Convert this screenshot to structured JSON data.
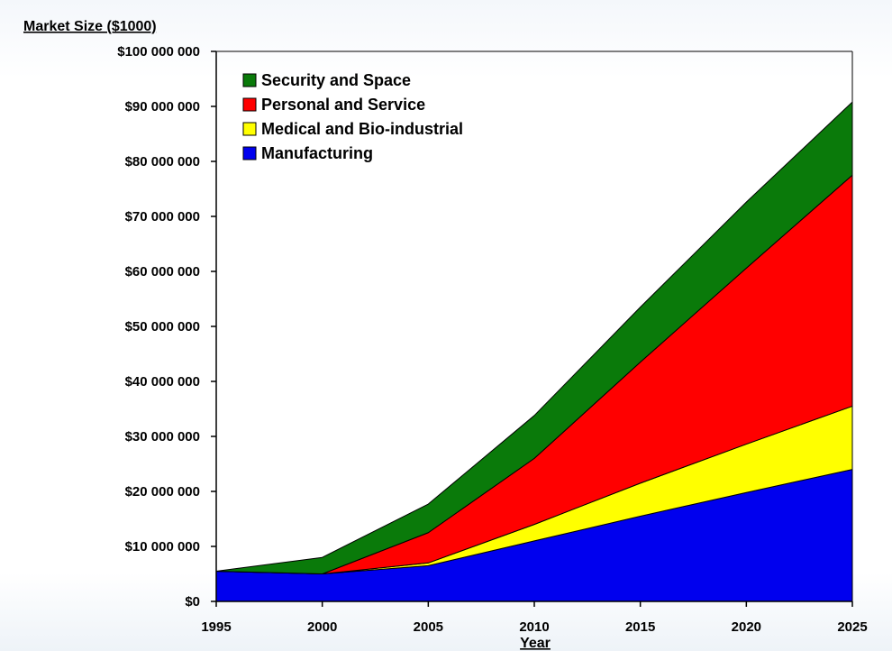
{
  "chart_data": {
    "type": "area",
    "stacked": true,
    "ylabel": "Market Size ($1000)",
    "xlabel": "Year",
    "x": [
      1995,
      2000,
      2005,
      2010,
      2015,
      2020,
      2025
    ],
    "xlim": [
      1995,
      2025
    ],
    "ylim": [
      0,
      100000000
    ],
    "x_ticks": [
      "1995",
      "2000",
      "2005",
      "2010",
      "2015",
      "2020",
      "2025"
    ],
    "y_ticks": [
      0,
      10000000,
      20000000,
      30000000,
      40000000,
      50000000,
      60000000,
      70000000,
      80000000,
      90000000,
      100000000
    ],
    "y_tick_labels": [
      "$0",
      "$10 000 000",
      "$20 000 000",
      "$30 000 000",
      "$40 000 000",
      "$50 000 000",
      "$60 000 000",
      "$70 000 000",
      "$80 000 000",
      "$90 000 000",
      "$100 000 000"
    ],
    "grid": false,
    "legend_placement": "top-left",
    "series": [
      {
        "name": "Manufacturing",
        "color": "#0000ee",
        "values": [
          5500000,
          5000000,
          6500000,
          11000000,
          15500000,
          19800000,
          24000000
        ]
      },
      {
        "name": "Medical and Bio-industrial",
        "color": "#ffff00",
        "values": [
          0,
          0,
          500000,
          3000000,
          6000000,
          8800000,
          11500000
        ]
      },
      {
        "name": "Personal and Service",
        "color": "#ff0000",
        "values": [
          0,
          0,
          5500000,
          12000000,
          22000000,
          32000000,
          42000000
        ]
      },
      {
        "name": "Security and Space",
        "color": "#0a7a0a",
        "values": [
          0,
          3000000,
          5200000,
          7800000,
          10000000,
          12000000,
          13300000
        ]
      }
    ],
    "legend_order": [
      "Security and Space",
      "Personal and Service",
      "Medical and Bio-industrial",
      "Manufacturing"
    ]
  }
}
